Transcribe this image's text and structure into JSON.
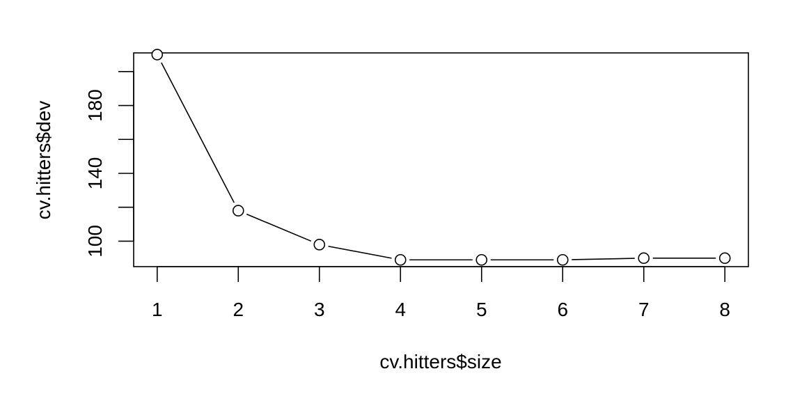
{
  "chart_data": {
    "type": "line",
    "title": "",
    "xlabel": "cv.hitters$size",
    "ylabel": "cv.hitters$dev",
    "x": [
      1,
      2,
      3,
      4,
      5,
      6,
      7,
      8
    ],
    "series": [
      {
        "values": [
          210,
          118,
          98,
          89,
          89,
          89,
          90,
          90
        ]
      }
    ],
    "xlim": [
      0.71,
      8.29
    ],
    "ylim": [
      85,
      211
    ],
    "x_ticks": [
      1,
      2,
      3,
      4,
      5,
      6,
      7,
      8
    ],
    "y_ticks": [
      100,
      120,
      140,
      160,
      180,
      200
    ],
    "y_tick_labels": [
      "100",
      "",
      "140",
      "",
      "180",
      ""
    ],
    "point_style": "open-circle",
    "grid": false,
    "legend": "none"
  }
}
